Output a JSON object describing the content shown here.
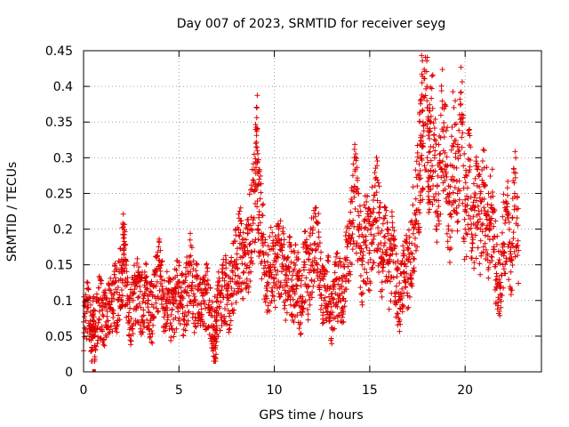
{
  "chart_data": {
    "type": "scatter",
    "title": "Day 007 of 2023, SRMTID for receiver seyg",
    "xlabel": "GPS time / hours",
    "ylabel": "SRMTID / TECUs",
    "xlim": [
      0,
      24
    ],
    "ylim": [
      0,
      0.45
    ],
    "xticks": [
      0,
      5,
      10,
      15,
      20
    ],
    "xtick_labels": [
      "0",
      "5",
      "10",
      "15",
      "20"
    ],
    "yticks": [
      0,
      0.05,
      0.1,
      0.15,
      0.2,
      0.25,
      0.3,
      0.35,
      0.4,
      0.45
    ],
    "ytick_labels": [
      "0",
      "0.05",
      "0.1",
      "0.15",
      "0.2",
      "0.25",
      "0.3",
      "0.35",
      "0.4",
      "0.45"
    ],
    "grid": true,
    "marker": "+",
    "color": "#e00000",
    "series": [
      {
        "name": "SRMTID",
        "x": [
          0.0,
          0.2,
          0.4,
          0.5,
          0.6,
          0.8,
          1.0,
          1.2,
          1.4,
          1.6,
          1.8,
          2.0,
          2.1,
          2.2,
          2.4,
          2.6,
          2.8,
          3.0,
          3.2,
          3.4,
          3.6,
          3.8,
          4.0,
          4.2,
          4.4,
          4.6,
          4.8,
          5.0,
          5.2,
          5.4,
          5.6,
          5.8,
          6.0,
          6.2,
          6.4,
          6.6,
          6.8,
          6.9,
          7.0,
          7.2,
          7.4,
          7.6,
          7.8,
          8.0,
          8.2,
          8.4,
          8.6,
          8.8,
          9.0,
          9.1,
          9.2,
          9.4,
          9.6,
          9.8,
          10.0,
          10.2,
          10.4,
          10.6,
          10.8,
          11.0,
          11.2,
          11.4,
          11.6,
          11.8,
          12.0,
          12.2,
          12.4,
          12.6,
          12.8,
          13.0,
          13.2,
          13.4,
          13.6,
          13.8,
          14.0,
          14.2,
          14.4,
          14.6,
          14.8,
          15.0,
          15.2,
          15.4,
          15.6,
          15.8,
          16.0,
          16.2,
          16.4,
          16.6,
          16.8,
          17.0,
          17.2,
          17.4,
          17.6,
          17.7,
          17.8,
          18.0,
          18.1,
          18.2,
          18.4,
          18.6,
          18.8,
          19.0,
          19.2,
          19.4,
          19.6,
          19.8,
          20.0,
          20.2,
          20.4,
          20.6,
          20.8,
          21.0,
          21.2,
          21.4,
          21.6,
          21.8,
          22.0,
          22.2,
          22.4,
          22.6,
          22.8
        ],
        "y": [
          0.07,
          0.09,
          0.06,
          0.0,
          0.05,
          0.1,
          0.08,
          0.07,
          0.09,
          0.11,
          0.1,
          0.14,
          0.17,
          0.13,
          0.07,
          0.1,
          0.12,
          0.09,
          0.11,
          0.1,
          0.08,
          0.12,
          0.15,
          0.09,
          0.11,
          0.08,
          0.1,
          0.12,
          0.09,
          0.11,
          0.14,
          0.1,
          0.12,
          0.08,
          0.11,
          0.1,
          0.05,
          0.02,
          0.09,
          0.11,
          0.12,
          0.1,
          0.13,
          0.15,
          0.18,
          0.14,
          0.17,
          0.2,
          0.26,
          0.31,
          0.22,
          0.18,
          0.12,
          0.15,
          0.13,
          0.16,
          0.17,
          0.11,
          0.14,
          0.12,
          0.13,
          0.09,
          0.15,
          0.12,
          0.17,
          0.21,
          0.14,
          0.1,
          0.12,
          0.08,
          0.11,
          0.13,
          0.09,
          0.16,
          0.18,
          0.26,
          0.2,
          0.15,
          0.19,
          0.17,
          0.21,
          0.24,
          0.16,
          0.19,
          0.14,
          0.17,
          0.12,
          0.1,
          0.15,
          0.13,
          0.18,
          0.22,
          0.27,
          0.38,
          0.32,
          0.4,
          0.26,
          0.35,
          0.3,
          0.24,
          0.37,
          0.28,
          0.22,
          0.32,
          0.25,
          0.35,
          0.2,
          0.28,
          0.18,
          0.24,
          0.2,
          0.26,
          0.19,
          0.23,
          0.15,
          0.12,
          0.18,
          0.22,
          0.14,
          0.25,
          0.17
        ]
      }
    ],
    "outlier_points": [
      {
        "x": 0.55,
        "y": 0.0
      }
    ]
  }
}
